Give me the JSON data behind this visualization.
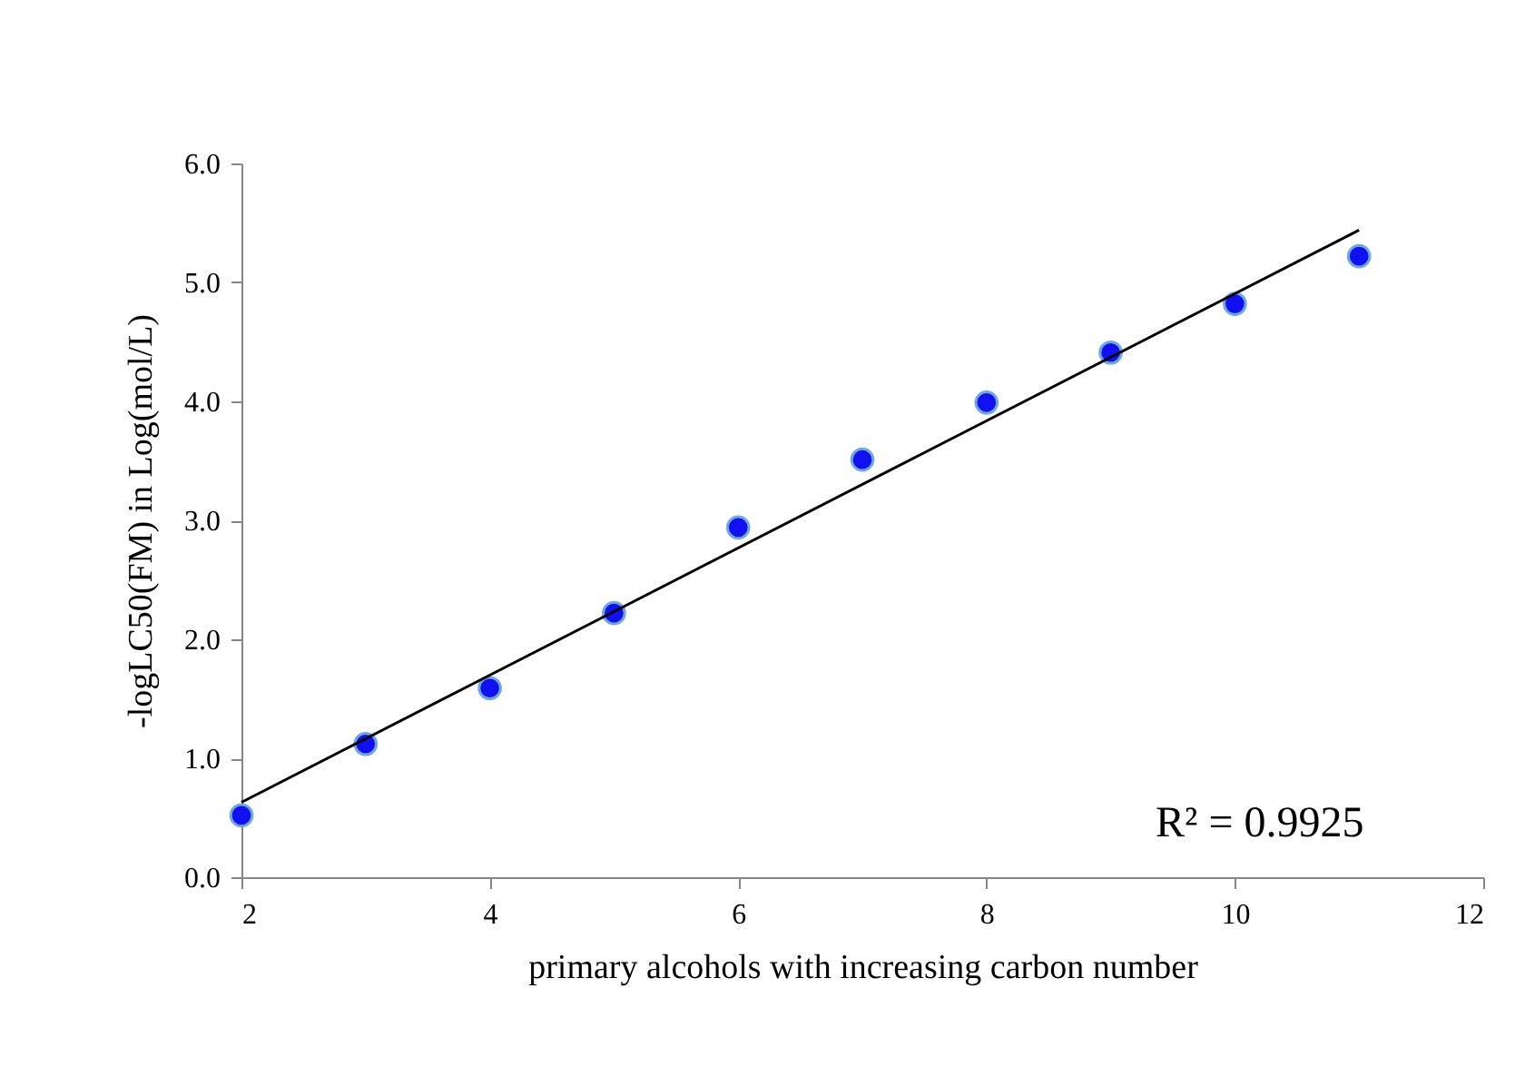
{
  "chart_data": {
    "type": "scatter",
    "xlabel": "primary alcohols with increasing carbon number",
    "ylabel": "-logLC50(FM) in Log(mol/L)",
    "annotations": [
      "R² = 0.9925"
    ],
    "xlim": [
      2,
      12
    ],
    "xticks": [
      2,
      4,
      6,
      8,
      10,
      12
    ],
    "ylim": [
      0,
      6
    ],
    "yticks": [
      {
        "value": 0,
        "label": "0.0"
      },
      {
        "value": 1,
        "label": "1.0"
      },
      {
        "value": 2,
        "label": "2.0"
      },
      {
        "value": 3,
        "label": "3.0"
      },
      {
        "value": 4,
        "label": "4.0"
      },
      {
        "value": 5,
        "label": "5.0"
      },
      {
        "value": 6,
        "label": "6.0"
      }
    ],
    "grid": false,
    "series": [
      {
        "marker": "circle",
        "color": "#1010f0",
        "x": [
          2,
          3,
          4,
          5,
          6,
          7,
          8,
          9,
          10,
          11
        ],
        "values": [
          0.52,
          1.12,
          1.59,
          2.22,
          2.94,
          3.51,
          3.99,
          4.41,
          4.82,
          5.22
        ]
      },
      {
        "type": "line",
        "marker": "none",
        "color": "#000000",
        "x": [
          2,
          11
        ],
        "values": [
          0.63,
          5.44
        ]
      }
    ]
  }
}
